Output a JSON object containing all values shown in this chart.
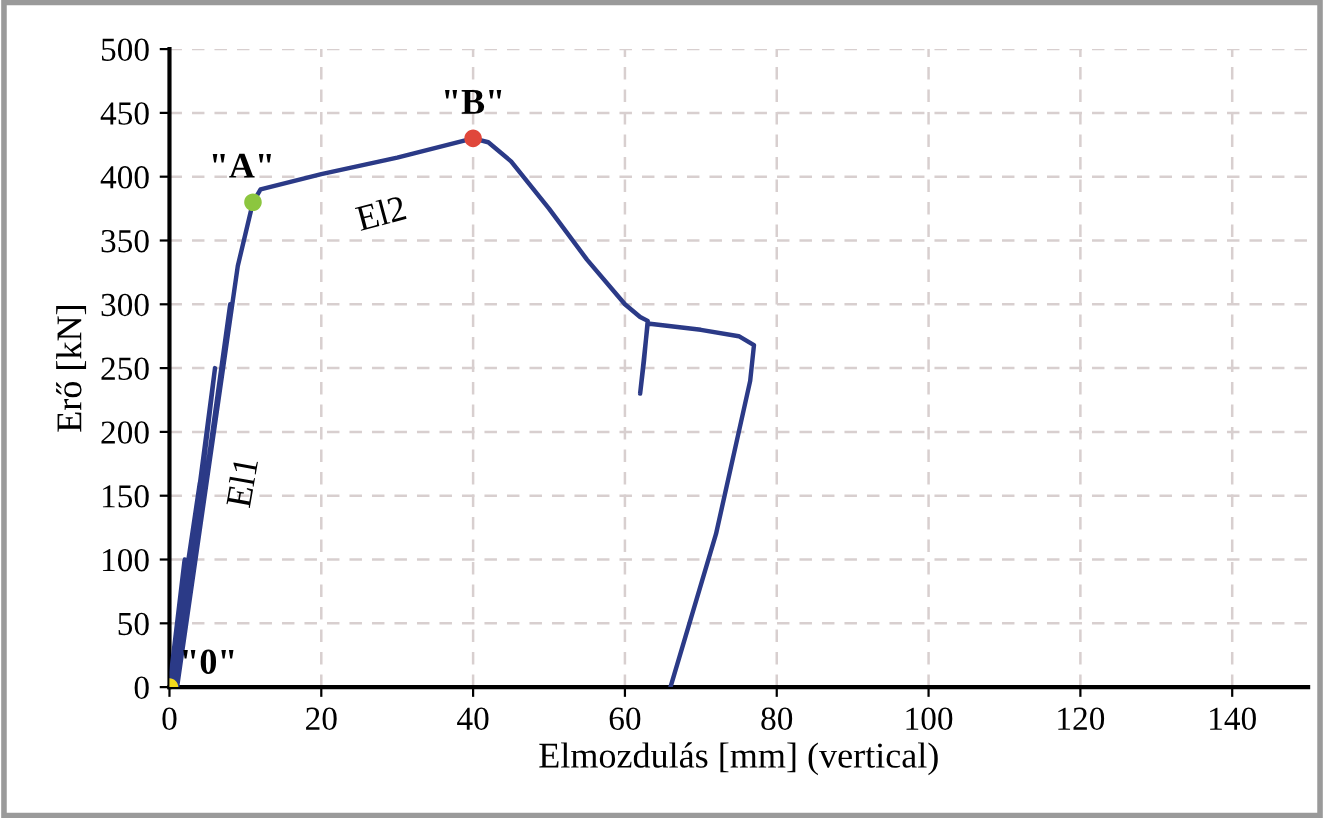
{
  "chart_data": {
    "type": "line",
    "xlabel": "Elmozdulás [mm] (vertical)",
    "ylabel": "Erő [kN]",
    "xlim": [
      0,
      150
    ],
    "ylim": [
      0,
      500
    ],
    "xticks": [
      0,
      20,
      40,
      60,
      80,
      100,
      120,
      140
    ],
    "yticks": [
      0,
      50,
      100,
      150,
      200,
      250,
      300,
      350,
      400,
      450,
      500
    ],
    "grid": true,
    "legend": false,
    "series": [
      {
        "color": "#2b3a87",
        "x": [
          0,
          2,
          0,
          4,
          0.5,
          6,
          1,
          8,
          1,
          9,
          11,
          12,
          20,
          30,
          40,
          42,
          45,
          50,
          55,
          60,
          62,
          63,
          62.5,
          62,
          63,
          70,
          75,
          77,
          76.5,
          72,
          66
        ],
        "values": [
          0,
          100,
          0,
          160,
          0,
          250,
          0,
          300,
          0,
          330,
          380,
          390,
          402,
          415,
          430,
          427,
          412,
          375,
          335,
          300,
          290,
          287,
          255,
          230,
          285,
          280,
          275,
          268,
          240,
          120,
          0
        ]
      },
      {
        "type": "scatter",
        "x": [
          0,
          11,
          40
        ],
        "values": [
          0,
          380,
          430
        ],
        "colors": [
          "#f2d81c",
          "#8cc63f",
          "#e0473b"
        ]
      }
    ],
    "annotations": [
      {
        "text": "\"0\"",
        "x": 0,
        "y": 0
      },
      {
        "text": "\"A\"",
        "x": 11,
        "y": 380
      },
      {
        "text": "\"B\"",
        "x": 40,
        "y": 430
      },
      "El1",
      "El2"
    ]
  }
}
